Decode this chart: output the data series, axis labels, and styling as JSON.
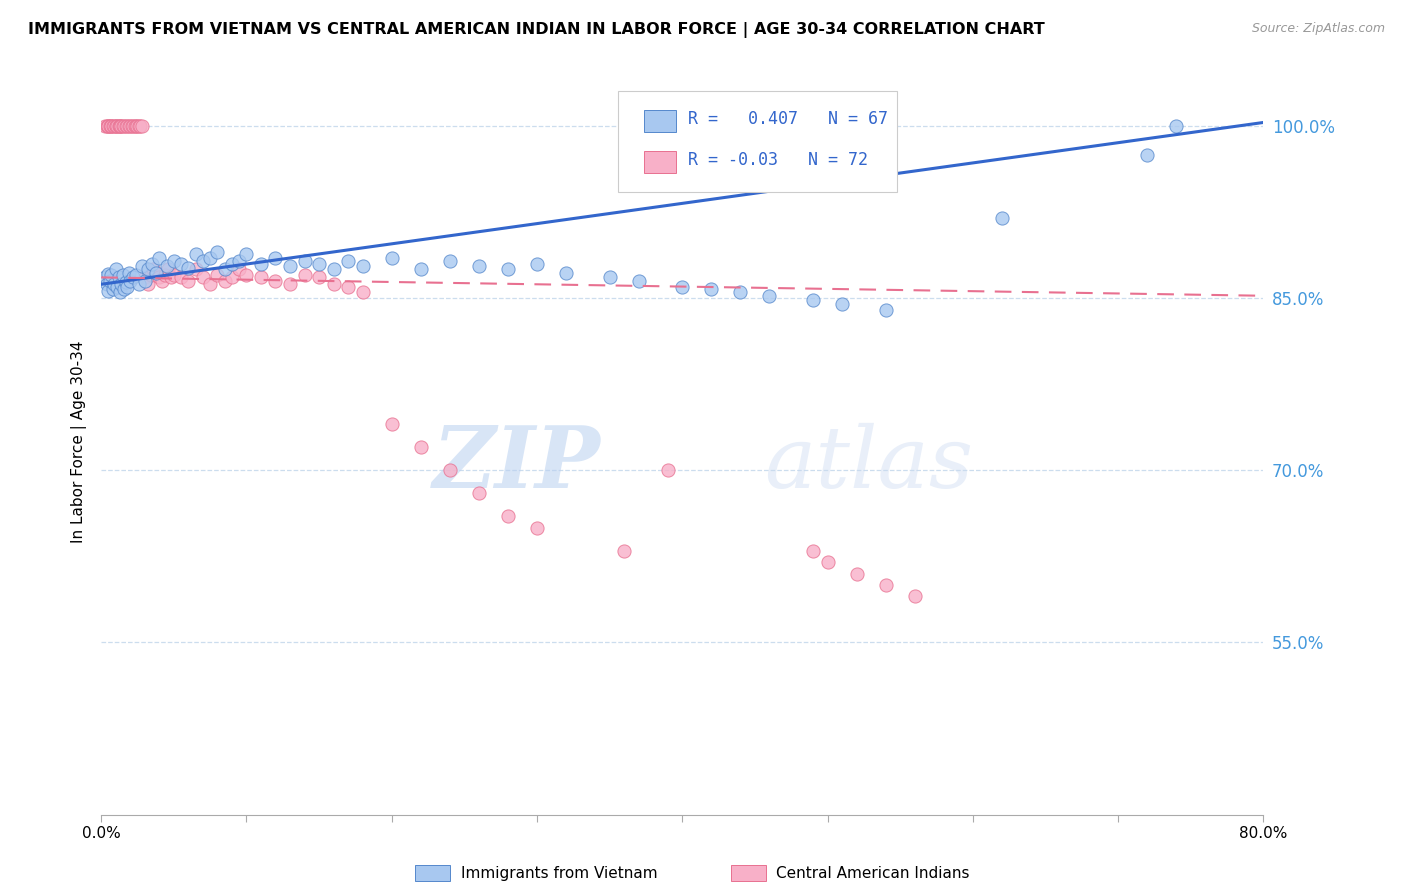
{
  "title": "IMMIGRANTS FROM VIETNAM VS CENTRAL AMERICAN INDIAN IN LABOR FORCE | AGE 30-34 CORRELATION CHART",
  "source": "Source: ZipAtlas.com",
  "ylabel": "In Labor Force | Age 30-34",
  "xlim": [
    0.0,
    0.8
  ],
  "ylim": [
    0.4,
    1.05
  ],
  "x_ticks": [
    0.0,
    0.1,
    0.2,
    0.3,
    0.4,
    0.5,
    0.6,
    0.7,
    0.8
  ],
  "x_tick_labels": [
    "0.0%",
    "",
    "",
    "",
    "",
    "",
    "",
    "",
    "80.0%"
  ],
  "y_ticks_right": [
    0.55,
    0.7,
    0.85,
    1.0
  ],
  "y_tick_labels_right": [
    "55.0%",
    "70.0%",
    "85.0%",
    "100.0%"
  ],
  "r_vietnam": 0.407,
  "n_vietnam": 67,
  "r_central": -0.03,
  "n_central": 72,
  "legend_label_vietnam": "Immigrants from Vietnam",
  "legend_label_central": "Central American Indians",
  "color_vietnam": "#A8C8F0",
  "color_central": "#F8B0C8",
  "edge_color_vietnam": "#5588CC",
  "edge_color_central": "#E87090",
  "line_color_vietnam": "#3366CC",
  "line_color_central": "#E87090",
  "watermark_zip": "ZIP",
  "watermark_atlas": "atlas",
  "viet_line_x0": 0.0,
  "viet_line_y0": 0.862,
  "viet_line_x1": 0.8,
  "viet_line_y1": 1.003,
  "cent_line_x0": 0.0,
  "cent_line_y0": 0.868,
  "cent_line_x1": 0.8,
  "cent_line_y1": 0.852,
  "vietnam_x": [
    0.003,
    0.004,
    0.005,
    0.005,
    0.006,
    0.007,
    0.008,
    0.009,
    0.01,
    0.011,
    0.012,
    0.013,
    0.014,
    0.015,
    0.016,
    0.017,
    0.018,
    0.019,
    0.02,
    0.022,
    0.024,
    0.026,
    0.028,
    0.03,
    0.032,
    0.035,
    0.038,
    0.04,
    0.045,
    0.05,
    0.055,
    0.06,
    0.065,
    0.07,
    0.075,
    0.08,
    0.085,
    0.09,
    0.095,
    0.1,
    0.11,
    0.12,
    0.13,
    0.14,
    0.15,
    0.16,
    0.17,
    0.18,
    0.2,
    0.22,
    0.24,
    0.26,
    0.28,
    0.3,
    0.32,
    0.35,
    0.37,
    0.4,
    0.42,
    0.44,
    0.46,
    0.49,
    0.51,
    0.54,
    0.62,
    0.72,
    0.74
  ],
  "vietnam_y": [
    0.868,
    0.862,
    0.871,
    0.856,
    0.865,
    0.87,
    0.858,
    0.862,
    0.875,
    0.86,
    0.868,
    0.855,
    0.862,
    0.87,
    0.858,
    0.864,
    0.86,
    0.872,
    0.865,
    0.868,
    0.87,
    0.862,
    0.878,
    0.865,
    0.875,
    0.88,
    0.872,
    0.885,
    0.878,
    0.882,
    0.88,
    0.876,
    0.888,
    0.882,
    0.885,
    0.89,
    0.875,
    0.88,
    0.882,
    0.888,
    0.88,
    0.885,
    0.878,
    0.882,
    0.88,
    0.875,
    0.882,
    0.878,
    0.885,
    0.875,
    0.882,
    0.878,
    0.875,
    0.88,
    0.872,
    0.868,
    0.865,
    0.86,
    0.858,
    0.855,
    0.852,
    0.848,
    0.845,
    0.84,
    0.92,
    0.975,
    1.0
  ],
  "central_x": [
    0.003,
    0.004,
    0.005,
    0.005,
    0.006,
    0.007,
    0.007,
    0.008,
    0.009,
    0.01,
    0.01,
    0.011,
    0.012,
    0.013,
    0.013,
    0.014,
    0.015,
    0.016,
    0.017,
    0.018,
    0.019,
    0.02,
    0.021,
    0.022,
    0.023,
    0.024,
    0.025,
    0.026,
    0.027,
    0.028,
    0.03,
    0.032,
    0.034,
    0.036,
    0.038,
    0.04,
    0.042,
    0.044,
    0.046,
    0.048,
    0.05,
    0.055,
    0.06,
    0.065,
    0.07,
    0.075,
    0.08,
    0.085,
    0.09,
    0.095,
    0.1,
    0.11,
    0.12,
    0.13,
    0.14,
    0.15,
    0.16,
    0.17,
    0.18,
    0.2,
    0.22,
    0.24,
    0.26,
    0.28,
    0.3,
    0.36,
    0.39,
    0.49,
    0.5,
    0.52,
    0.54,
    0.56
  ],
  "central_y": [
    1.0,
    1.0,
    1.0,
    1.0,
    1.0,
    1.0,
    1.0,
    1.0,
    1.0,
    1.0,
    1.0,
    1.0,
    1.0,
    1.0,
    1.0,
    1.0,
    1.0,
    1.0,
    1.0,
    1.0,
    1.0,
    1.0,
    1.0,
    1.0,
    1.0,
    1.0,
    1.0,
    1.0,
    1.0,
    1.0,
    0.868,
    0.862,
    0.87,
    0.875,
    0.872,
    0.868,
    0.865,
    0.87,
    0.875,
    0.868,
    0.87,
    0.868,
    0.865,
    0.875,
    0.868,
    0.862,
    0.87,
    0.865,
    0.868,
    0.875,
    0.87,
    0.868,
    0.865,
    0.862,
    0.87,
    0.868,
    0.862,
    0.86,
    0.855,
    0.74,
    0.72,
    0.7,
    0.68,
    0.66,
    0.65,
    0.63,
    0.7,
    0.63,
    0.62,
    0.61,
    0.6,
    0.59
  ]
}
